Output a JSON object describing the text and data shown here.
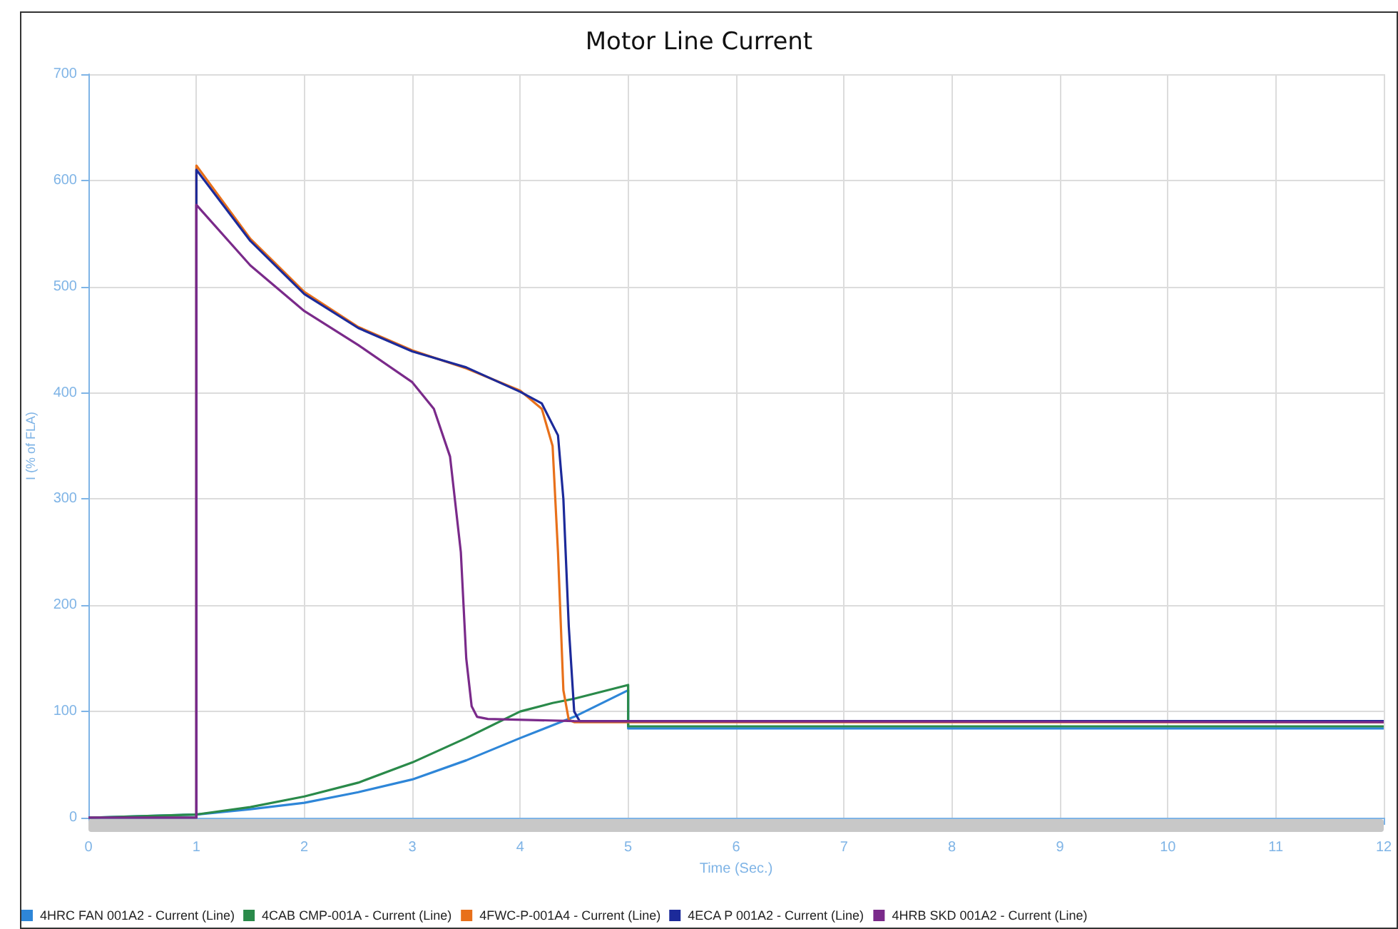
{
  "chart_data": {
    "type": "line",
    "title": "Motor Line Current",
    "xlabel": "Time (Sec.)",
    "ylabel": "I (% of FLA)",
    "xlim": [
      0,
      12
    ],
    "xticks": [
      0,
      1,
      2,
      3,
      4,
      5,
      6,
      7,
      8,
      9,
      10,
      11,
      12
    ],
    "ylim": [
      0,
      700
    ],
    "yticks": [
      0,
      100,
      200,
      300,
      400,
      500,
      600,
      700
    ],
    "grid": true,
    "legend": "bottom",
    "marker": "none",
    "line_style": "solid",
    "series": [
      {
        "name": "4HRC FAN 001A2 - Current (Line)",
        "color": "#2e86d8",
        "x": [
          0,
          1,
          1.5,
          2,
          2.5,
          3,
          3.5,
          4,
          4.5,
          5,
          5,
          12
        ],
        "values": [
          0,
          3,
          8,
          14,
          24,
          36,
          54,
          75,
          95,
          120,
          84,
          84
        ]
      },
      {
        "name": "4CAB CMP-001A - Current (Line)",
        "color": "#2a8a4a",
        "x": [
          0,
          1,
          1.5,
          2,
          2.5,
          3,
          3.5,
          4,
          4.3,
          4.5,
          5,
          5,
          12
        ],
        "values": [
          0,
          3,
          10,
          20,
          33,
          52,
          75,
          100,
          108,
          112,
          125,
          86,
          86
        ]
      },
      {
        "name": "4FWC-P-001A4 - Current (Line)",
        "color": "#e8701a",
        "x": [
          0,
          1,
          1,
          1.5,
          2,
          2.5,
          3,
          3.5,
          4,
          4.2,
          4.3,
          4.35,
          4.4,
          4.45,
          4.5,
          12
        ],
        "values": [
          0,
          0,
          614,
          545,
          495,
          462,
          440,
          423,
          402,
          385,
          350,
          250,
          120,
          92,
          90,
          90
        ]
      },
      {
        "name": "4ECA P 001A2 - Current (Line)",
        "color": "#1c2a9a",
        "x": [
          0,
          1,
          1,
          1.5,
          2,
          2.5,
          3,
          3.5,
          4,
          4.2,
          4.35,
          4.4,
          4.45,
          4.5,
          4.55,
          12
        ],
        "values": [
          0,
          0,
          610,
          543,
          493,
          461,
          439,
          424,
          401,
          390,
          360,
          300,
          180,
          100,
          91,
          91
        ]
      },
      {
        "name": "4HRB SKD 001A2 - Current (Line)",
        "color": "#7a2a8a",
        "x": [
          0,
          1,
          1,
          1.5,
          2,
          2.5,
          3,
          3.2,
          3.35,
          3.45,
          3.5,
          3.55,
          3.6,
          3.7,
          4.5,
          12
        ],
        "values": [
          0,
          0,
          577,
          520,
          477,
          445,
          410,
          385,
          340,
          250,
          150,
          105,
          95,
          93,
          91,
          90
        ]
      }
    ]
  }
}
